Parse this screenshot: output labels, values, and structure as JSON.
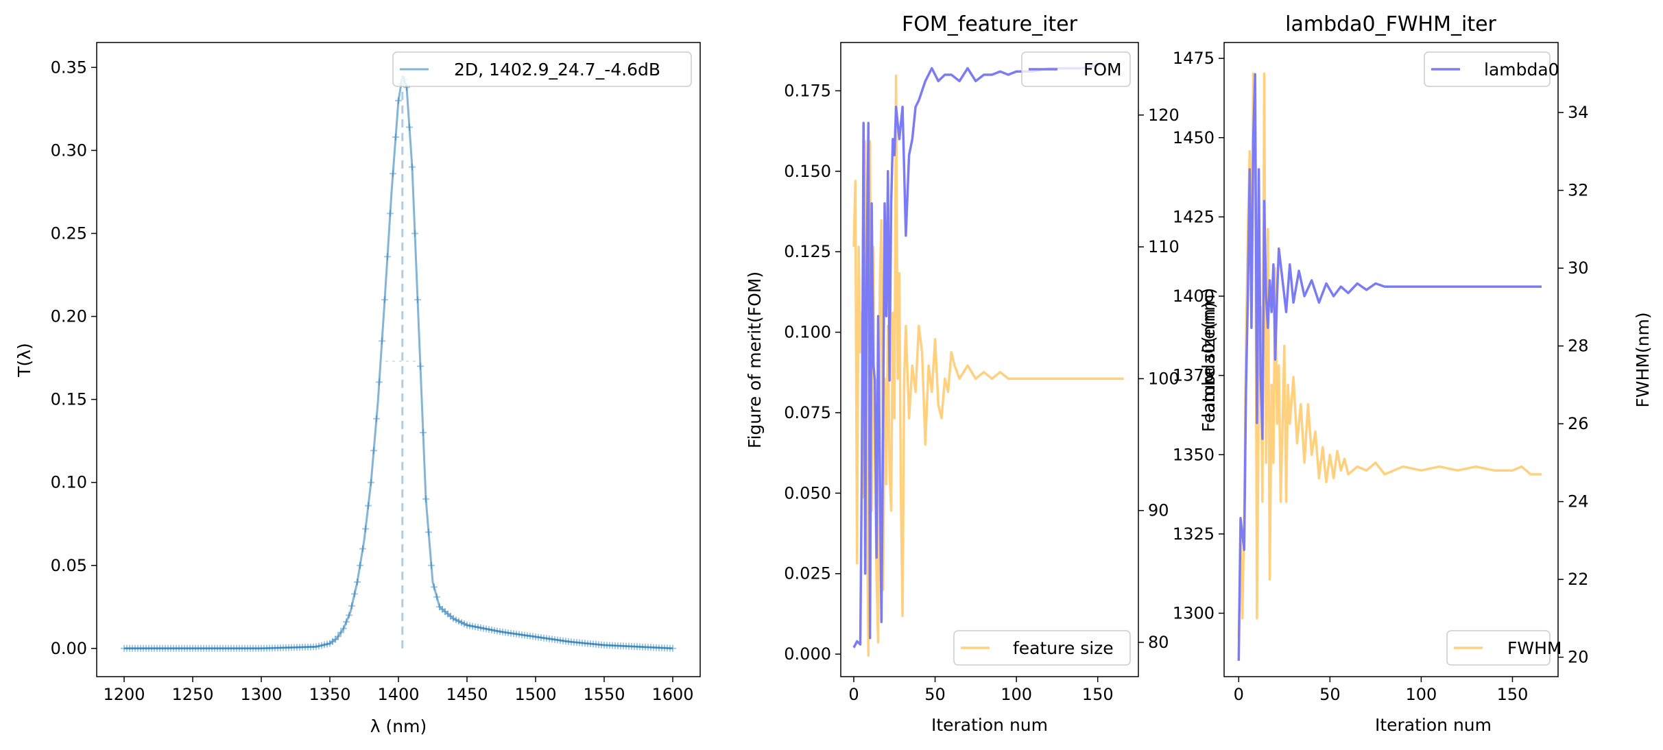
{
  "chart_data": [
    {
      "type": "line",
      "title": "",
      "xlabel": "λ (nm)",
      "ylabel": "T(λ)",
      "xlim": [
        1180,
        1620
      ],
      "ylim": [
        -0.017,
        0.365
      ],
      "xticks": [
        1200,
        1250,
        1300,
        1350,
        1400,
        1450,
        1500,
        1550,
        1600
      ],
      "yticks": [
        0.0,
        0.05,
        0.1,
        0.15,
        0.2,
        0.25,
        0.3,
        0.35
      ],
      "ytick_labels": [
        "0.00",
        "0.05",
        "0.10",
        "0.15",
        "0.20",
        "0.25",
        "0.30",
        "0.35"
      ],
      "legend": {
        "position": "top-right",
        "entries": [
          "2D, 1402.9_24.7_-4.6dB"
        ]
      },
      "colors": {
        "series": "#1f77b4",
        "guide": "#aecde6"
      },
      "peak": {
        "lambda0": 1402.9,
        "fwhm": 24.7,
        "peak_T": 0.345,
        "half_max": 0.173
      },
      "series": [
        {
          "name": "2D, 1402.9_24.7_-4.6dB",
          "x": [
            1200,
            1250,
            1300,
            1340,
            1350,
            1355,
            1360,
            1365,
            1370,
            1375,
            1380,
            1385,
            1390,
            1395,
            1400,
            1403,
            1406,
            1410,
            1415,
            1420,
            1425,
            1430,
            1440,
            1450,
            1475,
            1500,
            1525,
            1550,
            1575,
            1600
          ],
          "y": [
            0.0,
            0.0,
            0.0,
            0.001,
            0.003,
            0.006,
            0.012,
            0.022,
            0.04,
            0.065,
            0.1,
            0.148,
            0.21,
            0.275,
            0.33,
            0.345,
            0.338,
            0.29,
            0.19,
            0.09,
            0.04,
            0.025,
            0.018,
            0.014,
            0.01,
            0.007,
            0.004,
            0.002,
            0.001,
            0.0
          ]
        }
      ]
    },
    {
      "type": "line",
      "title": "FOM_feature_iter",
      "xlabel": "Iteration num",
      "ylabel": "Figure of merit(FOM)",
      "y2label": "Feature size(nm)",
      "xlim": [
        -8,
        175
      ],
      "ylim": [
        -0.007,
        0.19
      ],
      "y2lim": [
        77.4,
        125.5
      ],
      "xticks": [
        0,
        50,
        100,
        150
      ],
      "yticks": [
        0.0,
        0.025,
        0.05,
        0.075,
        0.1,
        0.125,
        0.15,
        0.175
      ],
      "ytick_labels": [
        "0.000",
        "0.025",
        "0.050",
        "0.075",
        "0.100",
        "0.125",
        "0.150",
        "0.175"
      ],
      "y2ticks": [
        80,
        90,
        100,
        110,
        120
      ],
      "legend": {
        "FOM": "top-right",
        "feature size": "bottom-right"
      },
      "colors": {
        "FOM": "#7b7bf3",
        "feature size": "#ffd07e"
      },
      "series": [
        {
          "name": "FOM",
          "axis": "left",
          "x": [
            0,
            2,
            4,
            5,
            6,
            7,
            8,
            9,
            10,
            11,
            12,
            13,
            14,
            15,
            16,
            17,
            18,
            19,
            20,
            21,
            22,
            23,
            24,
            25,
            26,
            28,
            30,
            32,
            34,
            36,
            38,
            40,
            44,
            48,
            52,
            56,
            60,
            65,
            70,
            75,
            80,
            85,
            90,
            95,
            100,
            110,
            120,
            130,
            140,
            150,
            155
          ],
          "y": [
            0.002,
            0.004,
            0.003,
            0.06,
            0.165,
            0.025,
            0.12,
            0.165,
            0.005,
            0.14,
            0.09,
            0.085,
            0.03,
            0.105,
            0.06,
            0.01,
            0.07,
            0.14,
            0.105,
            0.15,
            0.085,
            0.14,
            0.16,
            0.155,
            0.17,
            0.16,
            0.17,
            0.13,
            0.155,
            0.16,
            0.17,
            0.172,
            0.178,
            0.182,
            0.178,
            0.18,
            0.18,
            0.178,
            0.182,
            0.178,
            0.18,
            0.18,
            0.181,
            0.18,
            0.181,
            0.181,
            0.182,
            0.182,
            0.182,
            0.183,
            0.183
          ]
        },
        {
          "name": "feature size",
          "axis": "right",
          "x": [
            0,
            1,
            2,
            3,
            4,
            5,
            6,
            7,
            8,
            9,
            10,
            11,
            12,
            13,
            14,
            15,
            16,
            17,
            18,
            19,
            20,
            21,
            22,
            23,
            24,
            25,
            26,
            27,
            28,
            29,
            30,
            31,
            32,
            34,
            36,
            38,
            40,
            42,
            44,
            46,
            48,
            50,
            52,
            54,
            56,
            58,
            60,
            62,
            65,
            70,
            75,
            80,
            85,
            90,
            95,
            100,
            110,
            120,
            140,
            166
          ],
          "y": [
            110,
            115,
            86,
            110,
            102,
            105,
            91,
            118,
            92,
            79,
            118,
            90,
            110,
            94,
            85,
            80,
            107,
            112,
            84,
            100,
            92,
            104,
            93,
            90,
            105,
            97,
            123,
            100,
            108,
            91,
            82,
            100,
            104,
            97,
            101,
            99,
            104,
            102,
            95,
            101,
            99,
            103,
            98,
            97,
            100,
            99,
            102,
            101,
            100,
            101,
            100,
            100.5,
            100,
            100.5,
            100,
            100,
            100,
            100,
            100,
            100
          ]
        }
      ]
    },
    {
      "type": "line",
      "title": "lambda0_FWHM_iter",
      "xlabel": "Iteration num",
      "ylabel": "lambda0(nm)",
      "y2label": "FWHM(nm)",
      "xlim": [
        -8,
        175
      ],
      "ylim": [
        1280,
        1480
      ],
      "y2lim": [
        19.5,
        35.8
      ],
      "xticks": [
        0,
        50,
        100,
        150
      ],
      "yticks": [
        1300,
        1325,
        1350,
        1375,
        1400,
        1425,
        1450,
        1475
      ],
      "y2ticks": [
        20,
        22,
        24,
        26,
        28,
        30,
        32,
        34
      ],
      "legend": {
        "lambda0": "top-right",
        "FWHM": "bottom-right"
      },
      "colors": {
        "lambda0": "#7b7bf3",
        "FWHM": "#ffd07e"
      },
      "series": [
        {
          "name": "lambda0",
          "axis": "left",
          "x": [
            0,
            1,
            2,
            3,
            4,
            5,
            6,
            7,
            8,
            9,
            10,
            11,
            12,
            13,
            14,
            15,
            16,
            17,
            18,
            19,
            20,
            21,
            22,
            24,
            26,
            28,
            30,
            33,
            36,
            40,
            44,
            48,
            52,
            56,
            60,
            65,
            70,
            75,
            80,
            100,
            166
          ],
          "y": [
            1285,
            1330,
            1325,
            1320,
            1370,
            1400,
            1440,
            1390,
            1450,
            1470,
            1360,
            1440,
            1375,
            1355,
            1430,
            1400,
            1390,
            1405,
            1395,
            1410,
            1380,
            1400,
            1415,
            1405,
            1395,
            1410,
            1398,
            1408,
            1400,
            1405,
            1398,
            1404,
            1400,
            1403,
            1401,
            1404,
            1402,
            1404,
            1403,
            1403,
            1403
          ]
        },
        {
          "name": "FWHM",
          "axis": "right",
          "x": [
            0,
            1,
            2,
            3,
            4,
            5,
            6,
            7,
            8,
            9,
            10,
            11,
            12,
            13,
            14,
            15,
            16,
            17,
            18,
            19,
            20,
            21,
            22,
            23,
            24,
            25,
            26,
            27,
            28,
            30,
            32,
            34,
            36,
            38,
            40,
            42,
            44,
            46,
            48,
            50,
            52,
            54,
            56,
            58,
            60,
            65,
            70,
            75,
            80,
            90,
            100,
            110,
            120,
            130,
            140,
            150,
            155,
            160,
            166
          ],
          "y": [
            20.5,
            23,
            21,
            23.5,
            28,
            31,
            33,
            30,
            35,
            34,
            21,
            27,
            29,
            24,
            35,
            25,
            31,
            22,
            27,
            25,
            30,
            26,
            27.5,
            24,
            26,
            28,
            24,
            27,
            26,
            27.2,
            25.5,
            26.5,
            25,
            26.5,
            25.2,
            25.8,
            24.6,
            25.4,
            24.5,
            25.2,
            24.6,
            25.3,
            24.8,
            25.1,
            24.7,
            24.9,
            24.8,
            25,
            24.7,
            24.9,
            24.8,
            24.9,
            24.8,
            24.9,
            24.8,
            24.8,
            24.9,
            24.7,
            24.7
          ]
        }
      ]
    }
  ]
}
